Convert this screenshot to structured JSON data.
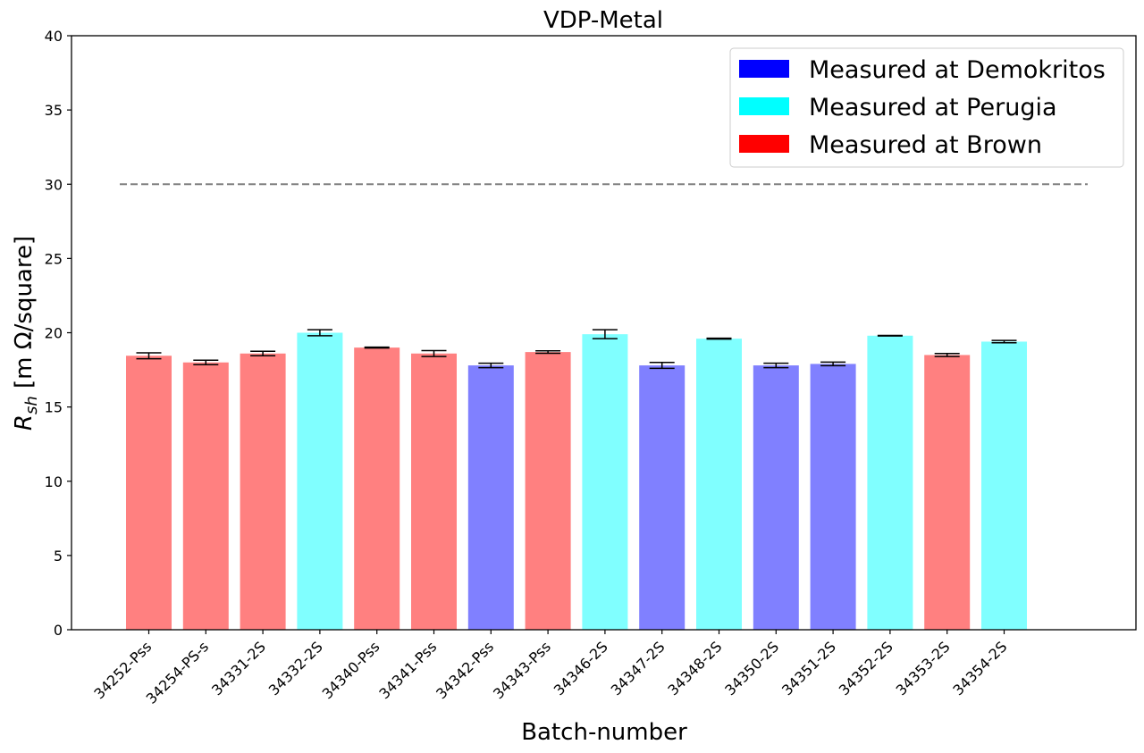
{
  "chart_data": {
    "type": "bar",
    "title": "VDP-Metal",
    "xlabel": "Batch-number",
    "ylabel_main": "R",
    "ylabel_sub": "sh",
    "ylabel_rest": " [m Ω/square]",
    "ylim": [
      0,
      40
    ],
    "yticks": [
      "0",
      "5",
      "10",
      "15",
      "20",
      "25",
      "30",
      "35",
      "40"
    ],
    "reference_line": 30,
    "legend_position": "top-right",
    "legend": [
      {
        "label": "Measured at Demokritos",
        "color": "#0000ff"
      },
      {
        "label": "Measured at Perugia",
        "color": "#00ffff"
      },
      {
        "label": "Measured at Brown",
        "color": "#ff0000"
      }
    ],
    "categories": [
      "34252-Pss",
      "34254-PS-s",
      "34331-2S",
      "34332-2S",
      "34340-Pss",
      "34341-Pss",
      "34342-Pss",
      "34343-Pss",
      "34346-2S",
      "34347-2S",
      "34348-2S",
      "34350-2S",
      "34351-2S",
      "34352-2S",
      "34353-2S",
      "34354-2S"
    ],
    "values": [
      18.45,
      18.0,
      18.6,
      20.0,
      19.0,
      18.6,
      17.8,
      18.7,
      19.9,
      17.8,
      19.6,
      17.8,
      17.9,
      19.8,
      18.5,
      19.4
    ],
    "errors": [
      0.2,
      0.15,
      0.15,
      0.2,
      0.03,
      0.2,
      0.15,
      0.08,
      0.3,
      0.2,
      0.03,
      0.15,
      0.12,
      0.02,
      0.1,
      0.08
    ],
    "sites": [
      "Brown",
      "Brown",
      "Brown",
      "Perugia",
      "Brown",
      "Brown",
      "Demokritos",
      "Brown",
      "Perugia",
      "Demokritos",
      "Perugia",
      "Demokritos",
      "Demokritos",
      "Perugia",
      "Brown",
      "Perugia"
    ],
    "site_colors": {
      "Demokritos": "#8080ff",
      "Perugia": "#80ffff",
      "Brown": "#ff8080"
    }
  }
}
